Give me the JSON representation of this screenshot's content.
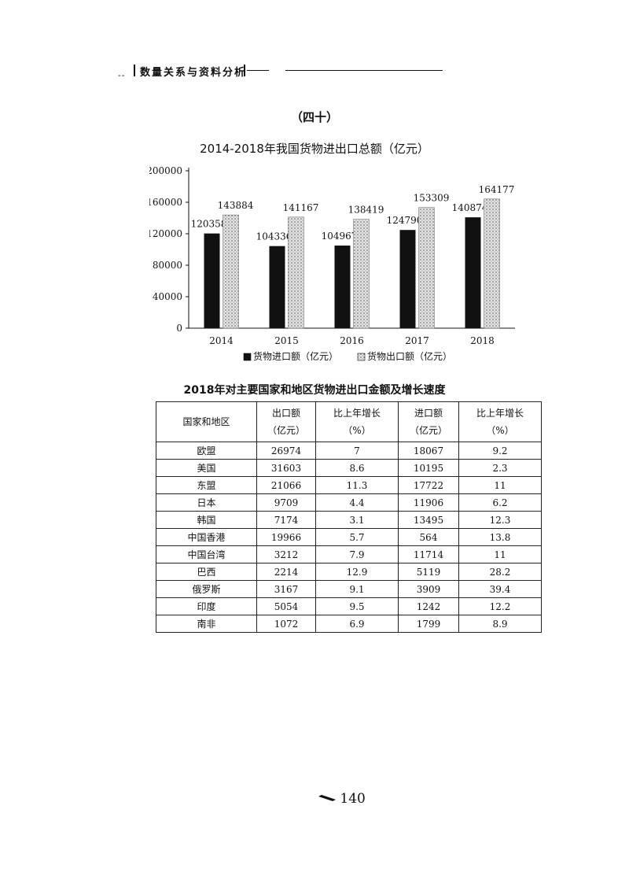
{
  "header": {
    "title": "数量关系与资料分析",
    "dashes": "--"
  },
  "section_no": "（四十）",
  "chart_data": {
    "type": "bar",
    "title": "2014-2018年我国货物进出口总额（亿元）",
    "categories": [
      "2014",
      "2015",
      "2016",
      "2017",
      "2018"
    ],
    "series": [
      {
        "name": "货物进口额（亿元）",
        "values": [
          120358,
          104336,
          104967,
          124790,
          140874
        ],
        "color": "#111111"
      },
      {
        "name": "货物出口额（亿元）",
        "values": [
          143884,
          141167,
          138419,
          153309,
          164177
        ],
        "color": "#bfbfbf"
      }
    ],
    "ylim": [
      0,
      200000
    ],
    "yticks": [
      "0",
      "40000",
      "80000",
      "120000",
      "160000",
      "200000"
    ],
    "legend": "bottom",
    "grid": false
  },
  "table": {
    "title": "2018年对主要国家和地区货物进出口金额及增长速度",
    "headers": {
      "region": "国家和地区",
      "export": [
        "出口额",
        "（亿元）"
      ],
      "export_growth": [
        "比上年增长",
        "（%）"
      ],
      "import": [
        "进口额",
        "（亿元）"
      ],
      "import_growth": [
        "比上年增长",
        "（%）"
      ]
    },
    "rows": [
      {
        "region": "欧盟",
        "export": "26974",
        "export_growth": "7",
        "import": "18067",
        "import_growth": "9.2"
      },
      {
        "region": "美国",
        "export": "31603",
        "export_growth": "8.6",
        "import": "10195",
        "import_growth": "2.3"
      },
      {
        "region": "东盟",
        "export": "21066",
        "export_growth": "11.3",
        "import": "17722",
        "import_growth": "11"
      },
      {
        "region": "日本",
        "export": "9709",
        "export_growth": "4.4",
        "import": "11906",
        "import_growth": "6.2"
      },
      {
        "region": "韩国",
        "export": "7174",
        "export_growth": "3.1",
        "import": "13495",
        "import_growth": "12.3"
      },
      {
        "region": "中国香港",
        "export": "19966",
        "export_growth": "5.7",
        "import": "564",
        "import_growth": "13.8"
      },
      {
        "region": "中国台湾",
        "export": "3212",
        "export_growth": "7.9",
        "import": "11714",
        "import_growth": "11"
      },
      {
        "region": "巴西",
        "export": "2214",
        "export_growth": "12.9",
        "import": "5119",
        "import_growth": "28.2"
      },
      {
        "region": "俄罗斯",
        "export": "3167",
        "export_growth": "9.1",
        "import": "3909",
        "import_growth": "39.4"
      },
      {
        "region": "印度",
        "export": "5054",
        "export_growth": "9.5",
        "import": "1242",
        "import_growth": "12.2"
      },
      {
        "region": "南非",
        "export": "1072",
        "export_growth": "6.9",
        "import": "1799",
        "import_growth": "8.9"
      }
    ]
  },
  "page_number": "140",
  "icons": {
    "page_marker": "pen-icon"
  }
}
